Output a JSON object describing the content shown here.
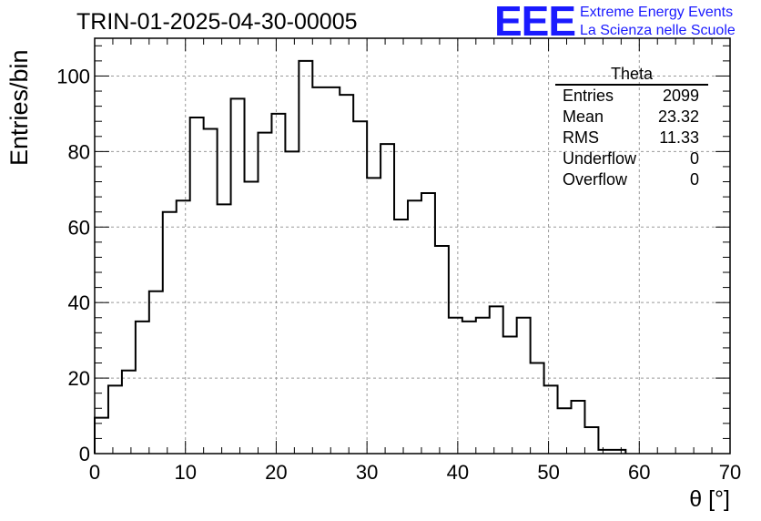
{
  "chart_data": {
    "type": "bar",
    "title": "TRIN-01-2025-04-30-00005",
    "xlabel": "θ [°]",
    "ylabel": "Entries/bin",
    "xlim": [
      0,
      70
    ],
    "ylim": [
      0,
      110
    ],
    "bin_width": 1.5,
    "x_start": 0,
    "values": [
      9.5,
      18,
      22,
      35,
      43,
      64,
      67,
      89,
      86,
      66,
      94,
      72,
      85,
      90,
      80,
      104,
      97,
      97,
      95,
      88,
      73,
      82,
      62,
      67,
      69,
      55,
      36,
      35,
      36,
      39,
      31,
      36,
      24,
      18,
      12,
      14,
      7,
      1,
      1
    ],
    "xticks": [
      "0",
      "10",
      "20",
      "30",
      "40",
      "50",
      "60",
      "70"
    ],
    "yticks": [
      "0",
      "20",
      "40",
      "60",
      "80",
      "100"
    ],
    "grid": true,
    "stats_box": {
      "title": "Theta",
      "rows": [
        {
          "label": "Entries",
          "value": "2099"
        },
        {
          "label": "Mean",
          "value": "23.32"
        },
        {
          "label": "RMS",
          "value": "11.33"
        },
        {
          "label": "Underflow",
          "value": "0"
        },
        {
          "label": "Overflow",
          "value": "0"
        }
      ]
    }
  },
  "logo": {
    "letters": "EEE",
    "line1": "Extreme Energy Events",
    "line2": "La Scienza nelle Scuole",
    "color": "#1a1aff"
  }
}
